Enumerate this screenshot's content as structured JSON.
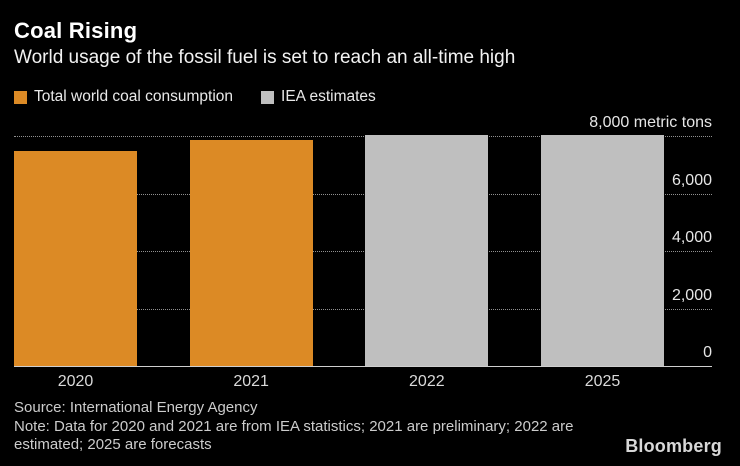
{
  "header": {
    "title": "Coal Rising",
    "subtitle": "World usage of the fossil fuel is set to reach an all-time high"
  },
  "legend": {
    "items": [
      {
        "label": "Total world coal consumption",
        "color": "#DC8A25"
      },
      {
        "label": "IEA estimates",
        "color": "#BFBFBF"
      }
    ]
  },
  "chart_data": {
    "type": "bar",
    "title": "Coal Rising",
    "subtitle": "World usage of the fossil fuel is set to reach an all-time high",
    "categories": [
      "2020",
      "2021",
      "2022",
      "2025"
    ],
    "values": [
      7480,
      7870,
      8030,
      8030
    ],
    "series_membership": [
      "Total world coal consumption",
      "Total world coal consumption",
      "IEA estimates",
      "IEA estimates"
    ],
    "series_colors": {
      "Total world coal consumption": "#DC8A25",
      "IEA estimates": "#BFBFBF"
    },
    "unit": "metric tons",
    "xlabel": "",
    "ylabel": "metric tons",
    "ylim": [
      0,
      8000
    ],
    "yticks": [
      {
        "value": 8000,
        "label": "8,000 metric tons"
      },
      {
        "value": 6000,
        "label": "6,000"
      },
      {
        "value": 4000,
        "label": "4,000"
      },
      {
        "value": 2000,
        "label": "2,000"
      },
      {
        "value": 0,
        "label": "0"
      }
    ],
    "grid": "horizontal-dotted",
    "legend_position": "top-left",
    "background": "#000000",
    "text_color": "#ffffff"
  },
  "footer": {
    "source": "Source: International Energy Agency",
    "note": "Note: Data for 2020 and 2021 are from IEA statistics; 2021 are preliminary; 2022 are estimated; 2025 are forecasts",
    "brand": "Bloomberg"
  }
}
